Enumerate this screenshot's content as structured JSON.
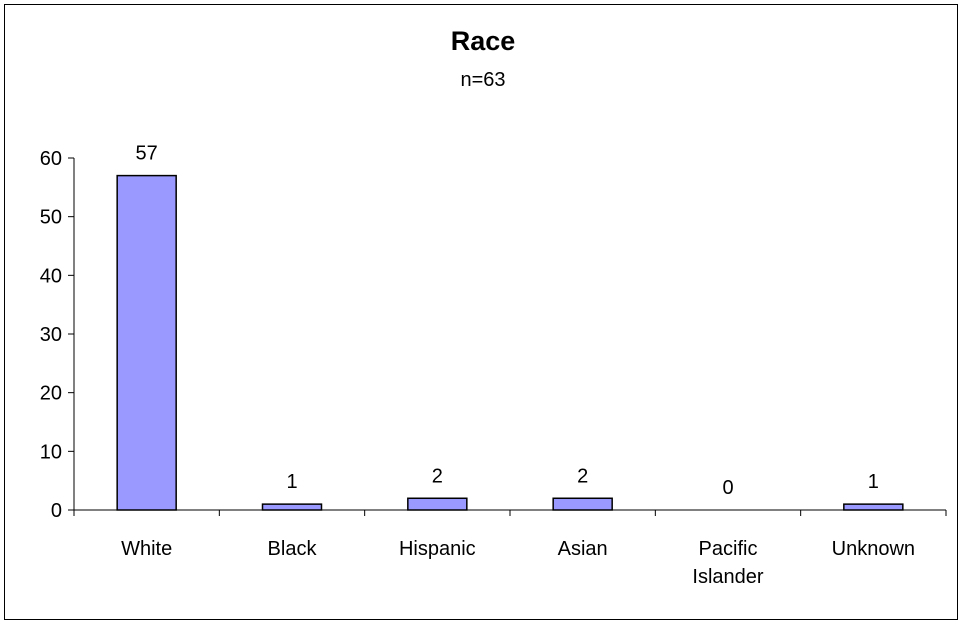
{
  "chart_data": {
    "type": "bar",
    "title": "Race",
    "subtitle": "n=63",
    "categories": [
      "White",
      "Black",
      "Hispanic",
      "Asian",
      "Pacific Islander",
      "Unknown"
    ],
    "category_lines": [
      [
        "White"
      ],
      [
        "Black"
      ],
      [
        "Hispanic"
      ],
      [
        "Asian"
      ],
      [
        "Pacific",
        "Islander"
      ],
      [
        "Unknown"
      ]
    ],
    "values": [
      57,
      1,
      2,
      2,
      0,
      1
    ],
    "data_labels": [
      "57",
      "1",
      "2",
      "2",
      "0",
      "1"
    ],
    "ylim": [
      0,
      60
    ],
    "yticks": [
      0,
      10,
      20,
      30,
      40,
      50,
      60
    ],
    "xlabel": "",
    "ylabel": "",
    "grid": false,
    "legend": "none",
    "colors": {
      "bar_fill": "#9999FF",
      "bar_stroke": "#000000",
      "axis": "#000000"
    }
  }
}
